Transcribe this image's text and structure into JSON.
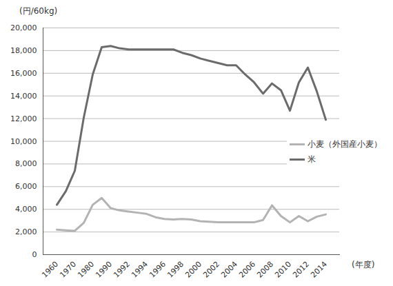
{
  "chart_data": {
    "type": "line",
    "y_label": "(円/60kg)",
    "x_label": "(年度)",
    "categories": [
      "1960",
      null,
      "1970",
      null,
      "1980",
      null,
      "1990",
      null,
      "1992",
      null,
      "1994",
      null,
      "1996",
      null,
      "1998",
      null,
      "2000",
      null,
      "2002",
      null,
      "2004",
      null,
      "2006",
      null,
      "2008",
      null,
      "2010",
      null,
      "2012",
      null,
      "2014"
    ],
    "series": [
      {
        "name": "小麦（外国産小麦）",
        "color": "#b3b3b3",
        "line_style": "solid",
        "values": [
          2200,
          2150,
          2100,
          2800,
          4400,
          5000,
          4100,
          3900,
          3800,
          3700,
          3600,
          3300,
          3150,
          3100,
          3150,
          3100,
          2950,
          2900,
          2850,
          2850,
          2850,
          2850,
          2850,
          3050,
          4350,
          3400,
          2850,
          3400,
          2950,
          3350,
          3550
        ]
      },
      {
        "name": "米",
        "color": "#6b6b6b",
        "line_style": "solid",
        "values": [
          4400,
          5600,
          7400,
          12100,
          15900,
          18300,
          18400,
          18200,
          18100,
          18100,
          18100,
          18100,
          18100,
          18100,
          17800,
          17600,
          17300,
          17100,
          16900,
          16700,
          16700,
          15900,
          15200,
          14200,
          15100,
          14500,
          12700,
          15200,
          16500,
          14400,
          11900
        ]
      }
    ],
    "ylim": [
      0,
      20000
    ],
    "yticks": [
      0,
      {
        "value": 2000,
        "label": "2,000"
      },
      {
        "value": 4000,
        "label": "4,000"
      },
      {
        "value": 6000,
        "label": "6,000"
      },
      {
        "value": 8000,
        "label": "8,000"
      },
      {
        "value": 10000,
        "label": "10,000"
      },
      {
        "value": 12000,
        "label": "12,000"
      },
      {
        "value": 14000,
        "label": "14,000"
      },
      {
        "value": 16000,
        "label": "16,000"
      },
      {
        "value": 18000,
        "label": "18,000"
      },
      {
        "value": 20000,
        "label": "20,000"
      }
    ],
    "grid": true,
    "legend": "right"
  }
}
